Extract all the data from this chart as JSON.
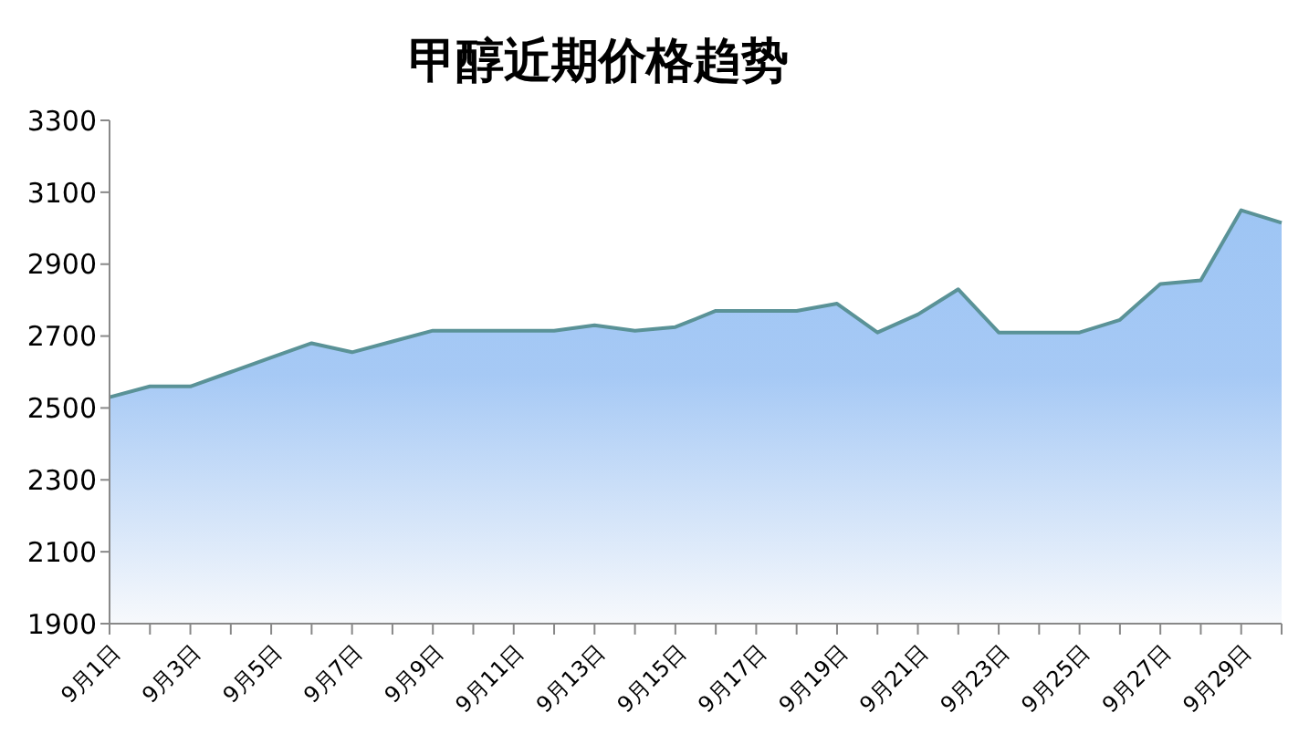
{
  "chart_data": {
    "type": "area",
    "title": "甲醇近期价格趋势",
    "categories": [
      "9月1日",
      null,
      "9月3日",
      null,
      "9月5日",
      null,
      "9月7日",
      null,
      "9月9日",
      null,
      "9月11日",
      null,
      "9月13日",
      null,
      "9月15日",
      null,
      "9月17日",
      null,
      "9月19日",
      null,
      "9月21日",
      null,
      "9月23日",
      null,
      "9月25日",
      null,
      "9月27日",
      null,
      "9月29日",
      null
    ],
    "series": [
      {
        "color": "#5a9297",
        "values": [
          2530,
          2560,
          2560,
          2600,
          2640,
          2680,
          2655,
          2685,
          2715,
          2715,
          2715,
          2715,
          2730,
          2715,
          2725,
          2770,
          2770,
          2770,
          2790,
          2710,
          2760,
          2830,
          2710,
          2710,
          2710,
          2745,
          2845,
          2855,
          3050,
          3015
        ]
      }
    ],
    "ylim": [
      1900,
      3300
    ],
    "yticks": [
      1900,
      2100,
      2300,
      2500,
      2700,
      2900,
      3100,
      3300
    ],
    "grid": false,
    "legend": false
  }
}
